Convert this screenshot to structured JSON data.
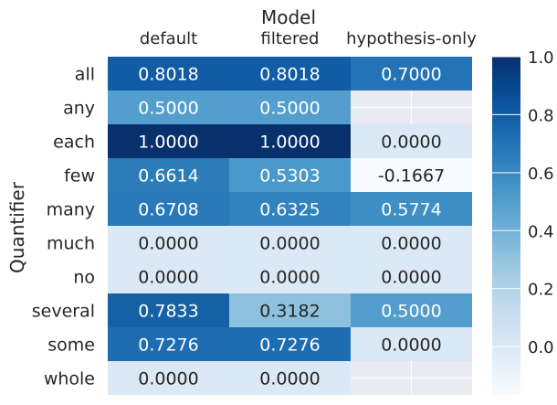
{
  "chart_data": {
    "type": "heatmap",
    "title": "Model",
    "xlabel": "",
    "ylabel": "Quantifier",
    "x_categories": [
      "default",
      "filtered",
      "hypothesis-only"
    ],
    "y_categories": [
      "all",
      "any",
      "each",
      "few",
      "many",
      "much",
      "no",
      "several",
      "some",
      "whole"
    ],
    "values": [
      [
        0.8018,
        0.8018,
        0.7
      ],
      [
        0.5,
        0.5,
        null
      ],
      [
        1.0,
        1.0,
        0.0
      ],
      [
        0.6614,
        0.5303,
        -0.1667
      ],
      [
        0.6708,
        0.6325,
        0.5774
      ],
      [
        0.0,
        0.0,
        0.0
      ],
      [
        0.0,
        0.0,
        0.0
      ],
      [
        0.7833,
        0.3182,
        0.5
      ],
      [
        0.7276,
        0.7276,
        0.0
      ],
      [
        0.0,
        0.0,
        null
      ]
    ],
    "value_format": "0.0000",
    "colormap": "Blues",
    "colorbar": {
      "min": -0.1667,
      "max": 1.0,
      "ticks": [
        0.0,
        0.2,
        0.4,
        0.6,
        0.8,
        1.0
      ],
      "tick_labels": [
        "0.0",
        "0.2",
        "0.4",
        "0.6",
        "0.8",
        "1.0"
      ]
    },
    "grid": "white gridlines visible only in empty cells",
    "legend": "colorbar on the right"
  }
}
